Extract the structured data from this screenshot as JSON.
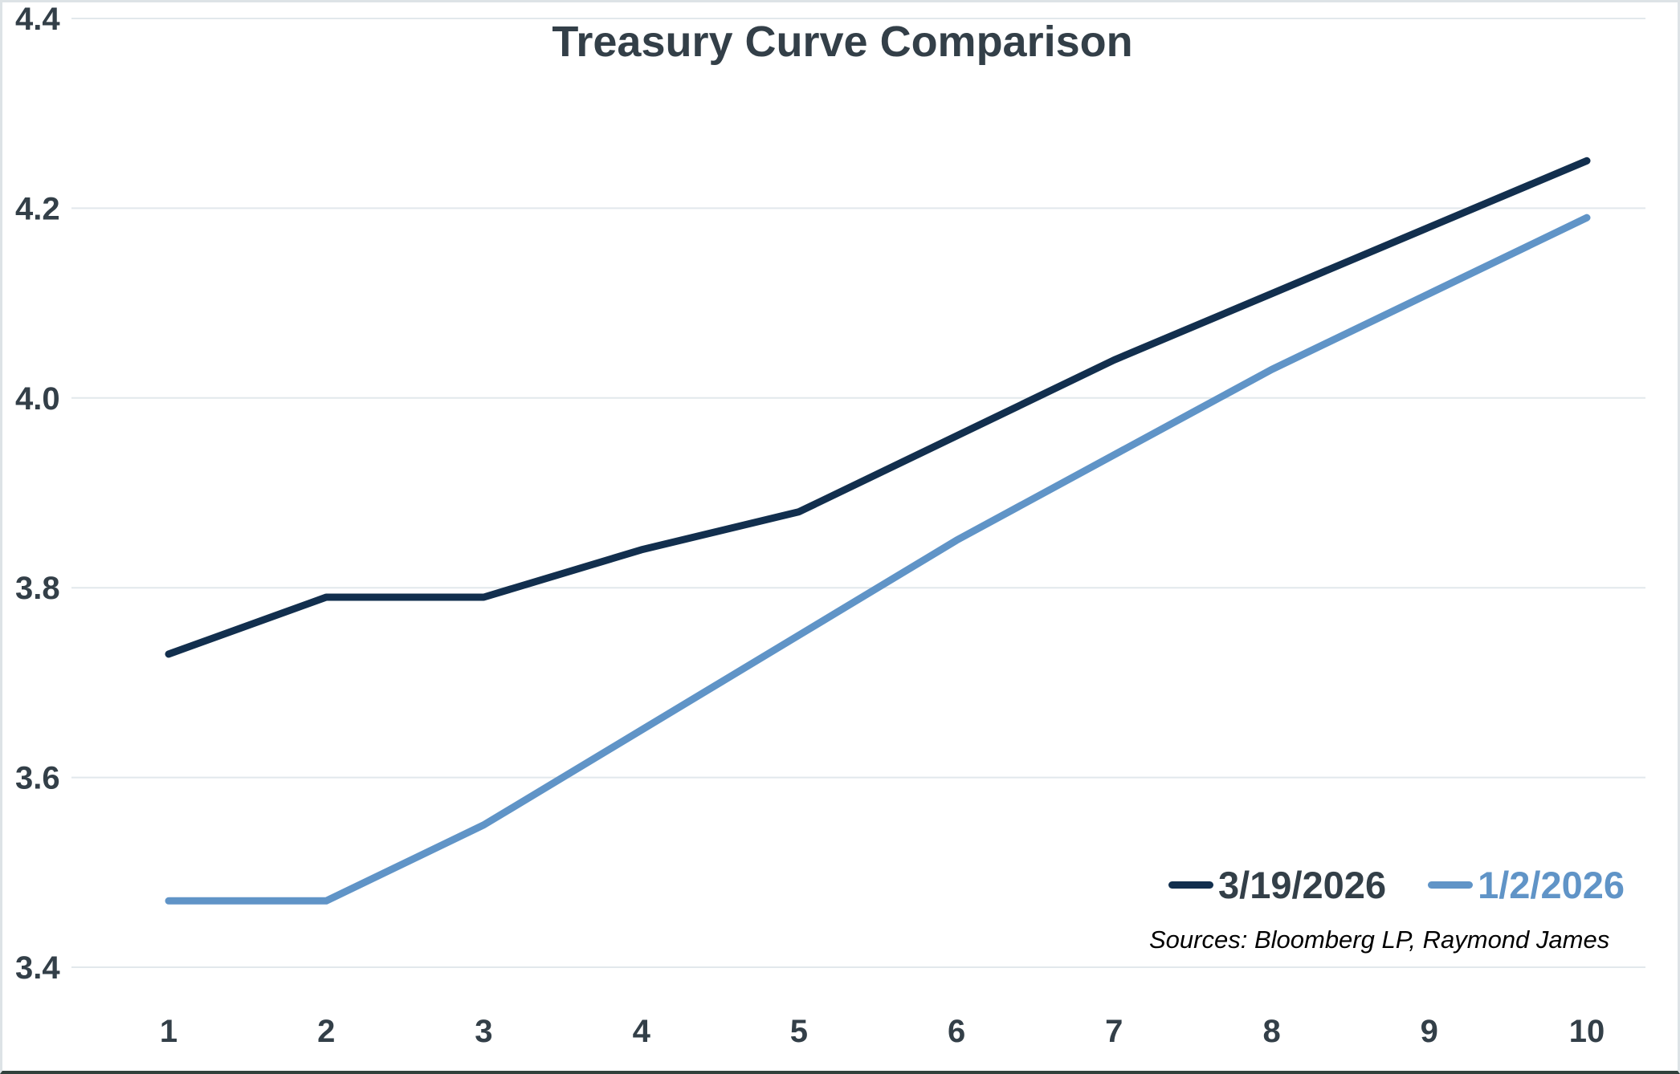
{
  "window": {
    "background": "#ffffff",
    "frame_border_color": "#dde3e6",
    "bottom_border_color": "#31413c"
  },
  "chart_data": {
    "type": "line",
    "title": "Treasury Curve Comparison",
    "title_color": "#333f48",
    "x": [
      1,
      2,
      3,
      4,
      5,
      6,
      7,
      8,
      9,
      10
    ],
    "x_tick_labels": [
      "1",
      "2",
      "3",
      "4",
      "5",
      "6",
      "7",
      "8",
      "9",
      "10"
    ],
    "xlabel": "",
    "ylabel": "",
    "ylim": [
      3.4,
      4.4
    ],
    "y_ticks": [
      3.4,
      3.6,
      3.8,
      4.0,
      4.2,
      4.4
    ],
    "y_tick_labels": [
      "3.4",
      "3.6",
      "3.8",
      "4.0",
      "4.2",
      "4.4"
    ],
    "grid": "horizontal-only",
    "grid_color": "#e2e8ec",
    "tick_label_color": "#333f48",
    "line_width": 9,
    "legend_position": "inside-bottom-right",
    "series": [
      {
        "name": "3/19/2026",
        "color": "#122f4e",
        "label_color": "#333f48",
        "values": [
          3.73,
          3.79,
          3.79,
          3.84,
          3.88,
          3.96,
          4.04,
          4.11,
          4.18,
          4.25
        ]
      },
      {
        "name": "1/2/2026",
        "color": "#6094c7",
        "label_color": "#6094c7",
        "values": [
          3.47,
          3.47,
          3.55,
          3.65,
          3.75,
          3.85,
          3.94,
          4.03,
          4.11,
          4.19
        ]
      }
    ],
    "sources": "Sources: Bloomberg LP, Raymond James"
  }
}
